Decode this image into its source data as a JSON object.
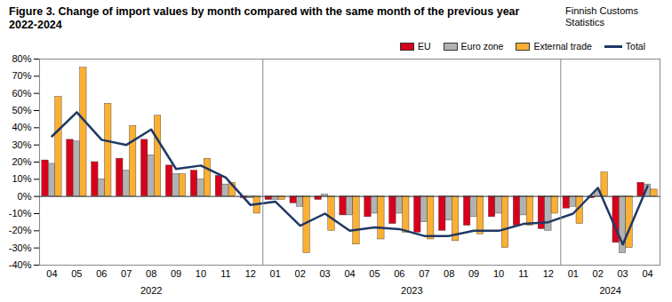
{
  "chart_data": {
    "type": "bar",
    "title": "Figure 3. Change of import values by month compared with the same month of the previous year 2022-2024",
    "source": "Finnish Customs Statistics",
    "categories": [
      "04",
      "05",
      "06",
      "07",
      "08",
      "09",
      "10",
      "11",
      "12",
      "01",
      "02",
      "03",
      "04",
      "05",
      "06",
      "07",
      "08",
      "09",
      "10",
      "11",
      "12",
      "01",
      "02",
      "03",
      "04"
    ],
    "category_groups": [
      "2022",
      "2022",
      "2022",
      "2022",
      "2022",
      "2022",
      "2022",
      "2022",
      "2022",
      "2023",
      "2023",
      "2023",
      "2023",
      "2023",
      "2023",
      "2023",
      "2023",
      "2023",
      "2023",
      "2023",
      "2023",
      "2024",
      "2024",
      "2024",
      "2024"
    ],
    "series": [
      {
        "name": "EU",
        "type": "bar",
        "color": "#d9001b",
        "values": [
          21,
          33,
          20,
          22,
          33,
          18,
          15,
          12,
          -1,
          -2,
          -4,
          -2,
          -11,
          -12,
          -16,
          -21,
          -20,
          -17,
          -12,
          -17,
          -19,
          -7,
          -1,
          -27,
          8
        ]
      },
      {
        "name": "Euro zone",
        "type": "bar",
        "color": "#b2b2b2",
        "values": [
          19,
          32,
          10,
          15,
          24,
          13,
          10,
          7,
          -1,
          -2,
          -6,
          1,
          -11,
          -10,
          -10,
          -15,
          -14,
          -12,
          -10,
          -11,
          -20,
          -6,
          3,
          -33,
          7
        ]
      },
      {
        "name": "External trade",
        "type": "bar",
        "color": "#fbb034",
        "values": [
          58,
          75,
          54,
          41,
          47,
          13,
          22,
          8,
          -10,
          -2,
          -33,
          -20,
          -28,
          -25,
          -21,
          -25,
          -26,
          -22,
          -30,
          -17,
          -10,
          -16,
          14,
          -30,
          4
        ]
      },
      {
        "name": "Total",
        "type": "line",
        "color": "#1f3864",
        "values": [
          35,
          49,
          33,
          30,
          39,
          16,
          18,
          11,
          -5,
          -3,
          -17,
          -10,
          -20,
          -18,
          -19,
          -23,
          -23,
          -20,
          -20,
          -16,
          -15,
          -10,
          5,
          -28,
          6
        ]
      }
    ],
    "ylim": [
      -40,
      80
    ],
    "yticks": [
      {
        "value": -40,
        "label": "-40%"
      },
      {
        "value": -30,
        "label": "-30%"
      },
      {
        "value": -20,
        "label": "-20%"
      },
      {
        "value": -10,
        "label": "-10%"
      },
      {
        "value": 0,
        "label": "0%"
      },
      {
        "value": 10,
        "label": "10%"
      },
      {
        "value": 20,
        "label": "20%"
      },
      {
        "value": 30,
        "label": "30%"
      },
      {
        "value": 40,
        "label": "40%"
      },
      {
        "value": 50,
        "label": "50%"
      },
      {
        "value": 60,
        "label": "60%"
      },
      {
        "value": 70,
        "label": "70%"
      },
      {
        "value": 80,
        "label": "80%"
      }
    ],
    "grid": false,
    "legend": "top-right"
  }
}
